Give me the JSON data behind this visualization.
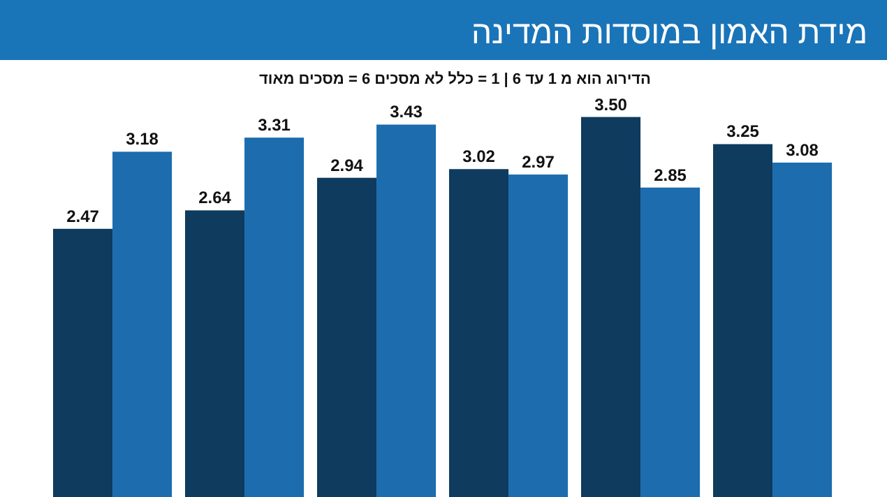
{
  "chart_data": {
    "type": "bar",
    "title": "מידת האמון במוסדות המדינה",
    "subtitle": "הדירוג הוא מ 1 עד 6 | 1 = כלל לא מסכים   6 = מסכים מאוד",
    "categories": [
      null,
      null,
      null,
      null,
      null,
      null
    ],
    "series": [
      {
        "color": "#0e3b5e",
        "values": [
          2.47,
          2.64,
          2.94,
          3.02,
          3.5,
          3.25
        ],
        "value_labels": [
          "2.47",
          "2.64",
          "2.94",
          "3.02",
          "3.50",
          "3.25"
        ]
      },
      {
        "color": "#1c6cae",
        "values": [
          3.18,
          3.31,
          3.43,
          2.97,
          2.85,
          3.08
        ],
        "value_labels": [
          "3.18",
          "3.31",
          "3.43",
          "2.97",
          "2.85",
          "3.08"
        ]
      }
    ]
  }
}
